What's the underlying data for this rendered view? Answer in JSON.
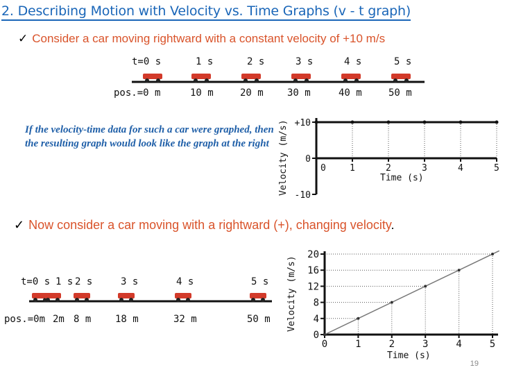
{
  "title": "2. Describing Motion with Velocity vs. Time Graphs (v - t graph)",
  "bullet1": {
    "check": "✓",
    "text": "Consider a car moving rightward with a constant velocity of  +10 m/s"
  },
  "row1": {
    "times": [
      "t=0 s",
      "1 s",
      "2 s",
      "3 s",
      "4 s",
      "5 s"
    ],
    "positions": [
      "pos.=0 m",
      "10 m",
      "20 m",
      "30 m",
      "40 m",
      "50 m"
    ]
  },
  "paragraph": "If  the velocity-time data for such a car were graphed, then the resulting graph would look like the graph at the right",
  "graph1": {
    "ylabel": "Velocity (m/s)",
    "xlabel": "Time (s)",
    "yticks": [
      "+10",
      "0",
      "-10"
    ],
    "xticks": [
      "0",
      "1",
      "2",
      "3",
      "4",
      "5"
    ]
  },
  "bullet2": {
    "check": "✓",
    "text": "Now consider a car moving with a rightward (+), changing velocity",
    "period": "."
  },
  "row2": {
    "times": [
      "t=0 s",
      "1 s",
      "2 s",
      "3 s",
      "4 s",
      "5 s"
    ],
    "positions": [
      "pos.=0m",
      "2m",
      "8 m",
      "18 m",
      "32 m",
      "50 m"
    ]
  },
  "chart_data": [
    {
      "type": "line",
      "xlabel": "Time (s)",
      "ylabel": "Velocity (m/s)",
      "x": [
        0,
        1,
        2,
        3,
        4,
        5
      ],
      "series": [
        {
          "name": "velocity",
          "values": [
            10,
            10,
            10,
            10,
            10,
            10
          ]
        }
      ],
      "ylim": [
        -10,
        10
      ],
      "xlim": [
        0,
        5
      ]
    },
    {
      "type": "line",
      "xlabel": "Time (s)",
      "ylabel": "Velocity (m/s)",
      "x": [
        0,
        1,
        2,
        3,
        4,
        5
      ],
      "series": [
        {
          "name": "velocity",
          "values": [
            0,
            4,
            8,
            12,
            16,
            20
          ]
        }
      ],
      "yticks": [
        "20",
        "16",
        "12",
        "8",
        "4",
        "0"
      ],
      "xticks": [
        "0",
        "1",
        "2",
        "3",
        "4",
        "5"
      ],
      "ylim": [
        0,
        20
      ],
      "xlim": [
        0,
        5
      ]
    }
  ],
  "page_number": "19",
  "colors": {
    "title": "#1a66b8",
    "bullet": "#d9532a",
    "paragraph": "#1f5fa8",
    "car": "#d23a2a"
  }
}
